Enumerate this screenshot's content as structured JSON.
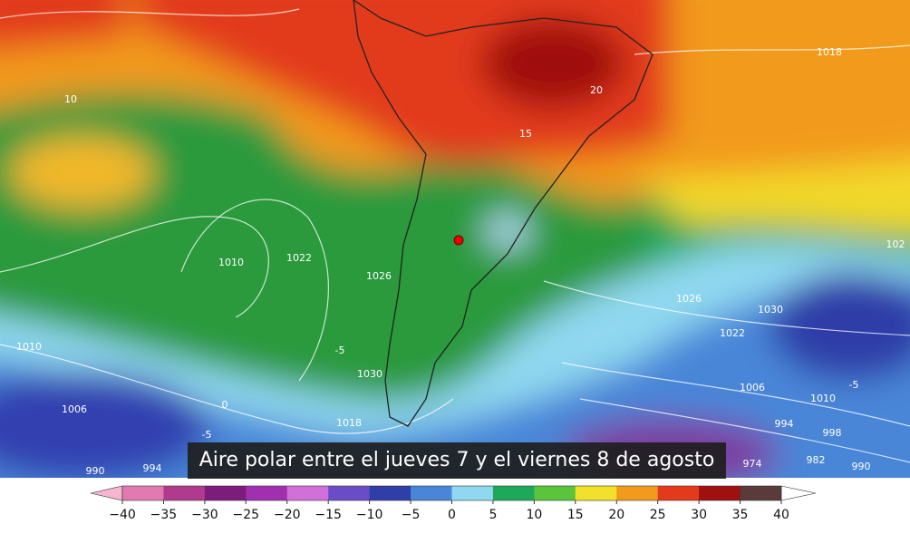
{
  "caption": "Aire polar entre el jueves 7 y el viernes 8 de agosto",
  "contour_labels": [
    1018,
    10,
    20,
    15,
    1010,
    1022,
    1026,
    1030,
    1022,
    1026,
    1006,
    1010,
    994,
    998,
    982,
    974,
    990,
    -5,
    1030,
    0,
    1018,
    1006,
    1010,
    -5,
    990,
    994,
    -5,
    102
  ],
  "colorbar": {
    "ticks": [
      {
        "value": -40,
        "label": "−40"
      },
      {
        "value": -35,
        "label": "−35"
      },
      {
        "value": -30,
        "label": "−30"
      },
      {
        "value": -25,
        "label": "−25"
      },
      {
        "value": -20,
        "label": "−20"
      },
      {
        "value": -15,
        "label": "−15"
      },
      {
        "value": -10,
        "label": "−10"
      },
      {
        "value": -5,
        "label": "−5"
      },
      0,
      5,
      10,
      15,
      20,
      25,
      30,
      35,
      40
    ],
    "colors": [
      "#f7b6cf",
      "#e07ab0",
      "#b03a8e",
      "#7c1c7c",
      "#a030b0",
      "#d070d8",
      "#6a4cc8",
      "#2f3ea8",
      "#4a86d8",
      "#90d8f0",
      "#1fa85a",
      "#5ac43a",
      "#f2e02a",
      "#f29a1c",
      "#e23a1a",
      "#a01010",
      "#5a3a3a",
      "#9a9a9a",
      "#ffffff"
    ]
  }
}
